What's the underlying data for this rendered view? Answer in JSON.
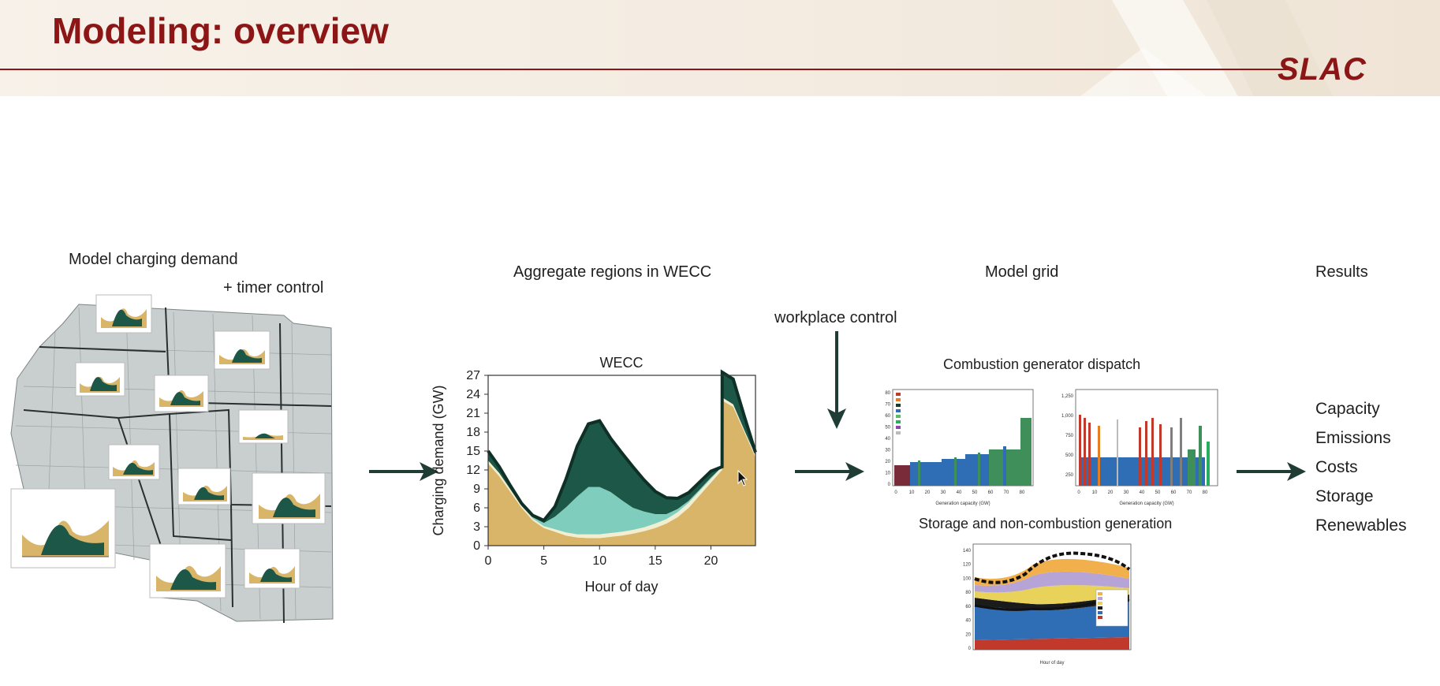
{
  "slide": {
    "title": "Modeling: overview",
    "logo_text": "SLAC",
    "brand_color": "#8c1515"
  },
  "labels": {
    "model_charging_demand": "Model charging demand",
    "timer_control": "+ timer control",
    "aggregate_regions": "Aggregate regions in WECC",
    "model_grid": "Model grid",
    "results": "Results",
    "workplace_control": "workplace control",
    "combustion_dispatch": "Combustion generator dispatch",
    "storage_noncombustion": "Storage and non-combustion generation"
  },
  "results_items": [
    "Capacity",
    "Emissions",
    "Costs",
    "Storage",
    "Renewables"
  ],
  "inset_charts": {
    "combustion_left_xlabel": "Generation capacity (GW)",
    "combustion_left_xticks": [
      "0",
      "10",
      "20",
      "30",
      "40",
      "50",
      "60",
      "70",
      "80"
    ],
    "combustion_left_yticks": [
      "0",
      "10",
      "20",
      "30",
      "40",
      "50",
      "60",
      "70",
      "80"
    ],
    "combustion_right_xlabel": "Generation capacity (GW)",
    "combustion_right_xticks": [
      "0",
      "10",
      "20",
      "30",
      "40",
      "50",
      "60",
      "70",
      "80"
    ],
    "combustion_right_yticks": [
      "250",
      "500",
      "750",
      "1,000",
      "1,250"
    ],
    "storage_xlabel": "Hour of day",
    "storage_yticks": [
      "0",
      "20",
      "40",
      "60",
      "80",
      "100",
      "120",
      "140"
    ]
  },
  "chart_data": {
    "type": "area",
    "title": "WECC",
    "xlabel": "Hour of day",
    "ylabel": "Charging demand (GW)",
    "xlim": [
      0,
      24
    ],
    "ylim": [
      0,
      27
    ],
    "xticks": [
      0,
      5,
      10,
      15,
      20
    ],
    "yticks": [
      0,
      3,
      6,
      9,
      12,
      15,
      18,
      21,
      24,
      27
    ],
    "x": [
      0,
      1,
      2,
      3,
      4,
      5,
      6,
      7,
      8,
      9,
      10,
      11,
      12,
      13,
      14,
      15,
      16,
      17,
      18,
      19,
      20,
      21,
      21.01,
      22,
      23,
      24
    ],
    "series": [
      {
        "color": "#d9b56a",
        "values": [
          13,
          11,
          8.5,
          6,
          4,
          2.8,
          2.2,
          1.6,
          1.3,
          1.2,
          1.2,
          1.4,
          1.6,
          1.9,
          2.3,
          2.8,
          3.5,
          4.5,
          6,
          8,
          10,
          12,
          23,
          22,
          18,
          14
        ]
      },
      {
        "color": "#f2eed2",
        "values": [
          0.5,
          0.5,
          0.4,
          0.3,
          0.3,
          0.3,
          0.4,
          0.5,
          0.5,
          0.6,
          0.6,
          0.6,
          0.6,
          0.6,
          0.6,
          0.7,
          0.7,
          0.8,
          0.8,
          0.7,
          0.6,
          0.5,
          0.5,
          0.4,
          0.3,
          0.3
        ]
      },
      {
        "color": "#7ecdbd",
        "values": [
          0,
          0,
          0,
          0,
          0.2,
          0.5,
          2,
          4,
          6,
          7.5,
          7.5,
          6.5,
          5,
          3.5,
          2.5,
          1.5,
          0.8,
          0.5,
          0.3,
          0.2,
          0.2,
          0,
          0,
          0,
          0,
          0
        ]
      },
      {
        "color": "#1d5747",
        "values": [
          1.5,
          1,
          0.6,
          0.4,
          0.3,
          0.4,
          1.6,
          4.5,
          8,
          10,
          10.5,
          8.5,
          7.5,
          6.5,
          5,
          3.6,
          2.6,
          1.7,
          1.3,
          1.2,
          1,
          0,
          4,
          4,
          2.2,
          0.5
        ]
      }
    ]
  }
}
